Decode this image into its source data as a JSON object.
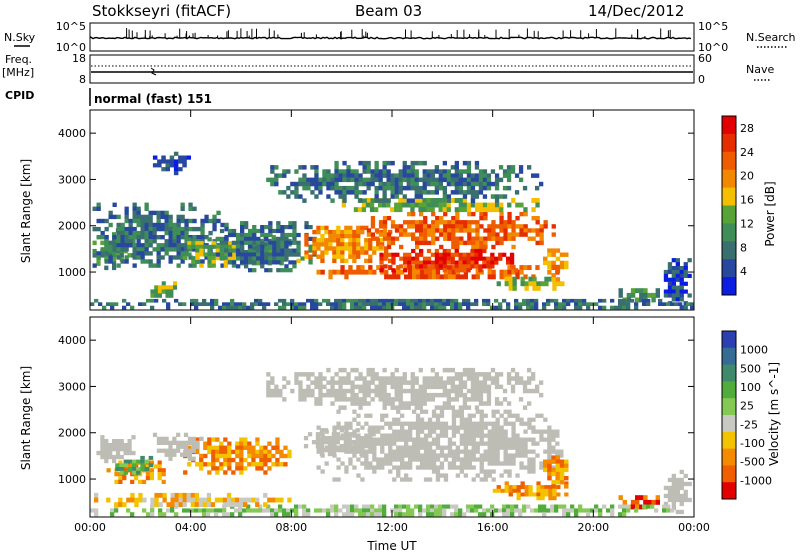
{
  "header": {
    "station": "Stokkseyri (fitACF)",
    "beam": "Beam 03",
    "date": "14/Dec/2012"
  },
  "top_panels": {
    "nsky_label": "N.Sky",
    "nsky_ticks": [
      "10^5",
      "10^0"
    ],
    "nsearch_label": "N.Search",
    "nsearch_ticks": [
      "10^5",
      "10^0"
    ],
    "freq_label_line1": "Freq.",
    "freq_label_line2": "[MHz]",
    "freq_ticks": [
      "18",
      "8"
    ],
    "nave_label": "Nave",
    "nave_ticks": [
      "60",
      "0"
    ],
    "cpid_label": "CPID",
    "cpid_text": "normal (fast) 151"
  },
  "colors": {
    "power_scale": [
      "#0b1de0",
      "#27489e",
      "#3a6f70",
      "#3f8d57",
      "#58a338",
      "#f3bf00",
      "#f38700",
      "#ef5c00",
      "#e62d00",
      "#e30000"
    ],
    "velocity_scale": [
      "#2a3fb0",
      "#356b95",
      "#3f8a6a",
      "#51ad3b",
      "#84c954",
      "#c9c9c4",
      "#f3c300",
      "#f38a00",
      "#ef5f00",
      "#e30000"
    ],
    "ground_scatter": "#bdbdb5"
  },
  "chart_data": [
    {
      "type": "heatmap",
      "title": "",
      "xlabel": "",
      "ylabel": "Slant Range [km]",
      "x_ticks": [
        "00:00",
        "04:00",
        "08:00",
        "12:00",
        "16:00",
        "20:00",
        "00:00"
      ],
      "y_ticks": [
        "1000",
        "2000",
        "3000",
        "4000"
      ],
      "xlim": [
        0,
        24
      ],
      "ylim": [
        180,
        4500
      ],
      "colorbar": {
        "label": "Power [dB]",
        "ticks": [
          "4",
          "8",
          "12",
          "16",
          "20",
          "24",
          "28"
        ],
        "range": [
          0,
          30
        ]
      },
      "regions": [
        {
          "t0": 0.1,
          "t1": 1.8,
          "r0": 1050,
          "r1": 1950,
          "v": 11
        },
        {
          "t0": 0.1,
          "t1": 5.5,
          "r0": 1100,
          "r1": 2500,
          "v": 5
        },
        {
          "t0": 2.4,
          "t1": 3.6,
          "r0": 450,
          "r1": 800,
          "v": 14
        },
        {
          "t0": 3.7,
          "t1": 6.6,
          "r0": 1100,
          "r1": 1750,
          "v": 13
        },
        {
          "t0": 5.8,
          "t1": 8.0,
          "r0": 1150,
          "r1": 1800,
          "v": 10
        },
        {
          "t0": 5.0,
          "t1": 9.0,
          "r0": 1000,
          "r1": 2100,
          "v": 5
        },
        {
          "t0": 8.2,
          "t1": 12.0,
          "r0": 1200,
          "r1": 2000,
          "v": 19
        },
        {
          "t0": 9.0,
          "t1": 18.8,
          "r0": 850,
          "r1": 1150,
          "v": 24
        },
        {
          "t0": 11.0,
          "t1": 18.5,
          "r0": 1500,
          "r1": 2300,
          "v": 24
        },
        {
          "t0": 11.5,
          "t1": 17.0,
          "r0": 1000,
          "r1": 1500,
          "v": 27
        },
        {
          "t0": 10.0,
          "t1": 18.5,
          "r0": 2300,
          "r1": 2600,
          "v": 14
        },
        {
          "t0": 7.0,
          "t1": 18.0,
          "r0": 2500,
          "r1": 3400,
          "v": 5
        },
        {
          "t0": 16.0,
          "t1": 19.0,
          "r0": 600,
          "r1": 900,
          "v": 12
        },
        {
          "t0": 18.0,
          "t1": 19.0,
          "r0": 800,
          "r1": 1600,
          "v": 19
        },
        {
          "t0": 21.0,
          "t1": 22.8,
          "r0": 350,
          "r1": 650,
          "v": 9
        },
        {
          "t0": 22.8,
          "t1": 23.9,
          "r0": 200,
          "r1": 1300,
          "v": 4
        },
        {
          "t0": 0.0,
          "t1": 24.0,
          "r0": 200,
          "r1": 420,
          "v": 6
        },
        {
          "t0": 2.5,
          "t1": 4.0,
          "r0": 3100,
          "r1": 3600,
          "v": 3
        }
      ]
    },
    {
      "type": "heatmap",
      "title": "",
      "xlabel": "Time UT",
      "ylabel": "Slant Range [km]",
      "x_ticks": [
        "00:00",
        "04:00",
        "08:00",
        "12:00",
        "16:00",
        "20:00",
        "00:00"
      ],
      "y_ticks": [
        "1000",
        "2000",
        "3000",
        "4000"
      ],
      "xlim": [
        0,
        24
      ],
      "ylim": [
        180,
        4500
      ],
      "colorbar": {
        "label": "Velocity [m s^-1]",
        "ticks": [
          "1000",
          "500",
          "100",
          "25",
          "-25",
          "-100",
          "-500",
          "-1000"
        ]
      },
      "regions": [
        {
          "t0": 0.1,
          "t1": 1.8,
          "r0": 1350,
          "r1": 1950,
          "c": "gs"
        },
        {
          "t0": 0.5,
          "t1": 3.0,
          "r0": 900,
          "r1": 1400,
          "c": 7
        },
        {
          "t0": 1.0,
          "t1": 2.5,
          "r0": 1100,
          "r1": 1500,
          "c": 3
        },
        {
          "t0": 3.7,
          "t1": 8.0,
          "r0": 1100,
          "r1": 1900,
          "c": 7
        },
        {
          "t0": 2.5,
          "t1": 4.5,
          "r0": 1400,
          "r1": 2000,
          "c": "gs"
        },
        {
          "t0": 9.0,
          "t1": 18.8,
          "r0": 950,
          "r1": 2500,
          "c": "gs"
        },
        {
          "t0": 8.5,
          "t1": 11.5,
          "r0": 1500,
          "r1": 2100,
          "c": "gs"
        },
        {
          "t0": 7.0,
          "t1": 18.0,
          "r0": 2500,
          "r1": 3400,
          "c": "gs"
        },
        {
          "t0": 16.0,
          "t1": 19.0,
          "r0": 550,
          "r1": 950,
          "c": 7
        },
        {
          "t0": 18.0,
          "t1": 19.0,
          "r0": 800,
          "r1": 1600,
          "c": 7
        },
        {
          "t0": 21.0,
          "t1": 22.8,
          "r0": 350,
          "r1": 650,
          "c": 8
        },
        {
          "t0": 22.8,
          "t1": 23.9,
          "r0": 250,
          "r1": 1200,
          "c": "gs"
        },
        {
          "t0": 0.0,
          "t1": 24.0,
          "r0": 200,
          "r1": 450,
          "c": 4
        },
        {
          "t0": 0.0,
          "t1": 8.0,
          "r0": 400,
          "r1": 700,
          "c": 6
        }
      ]
    }
  ]
}
